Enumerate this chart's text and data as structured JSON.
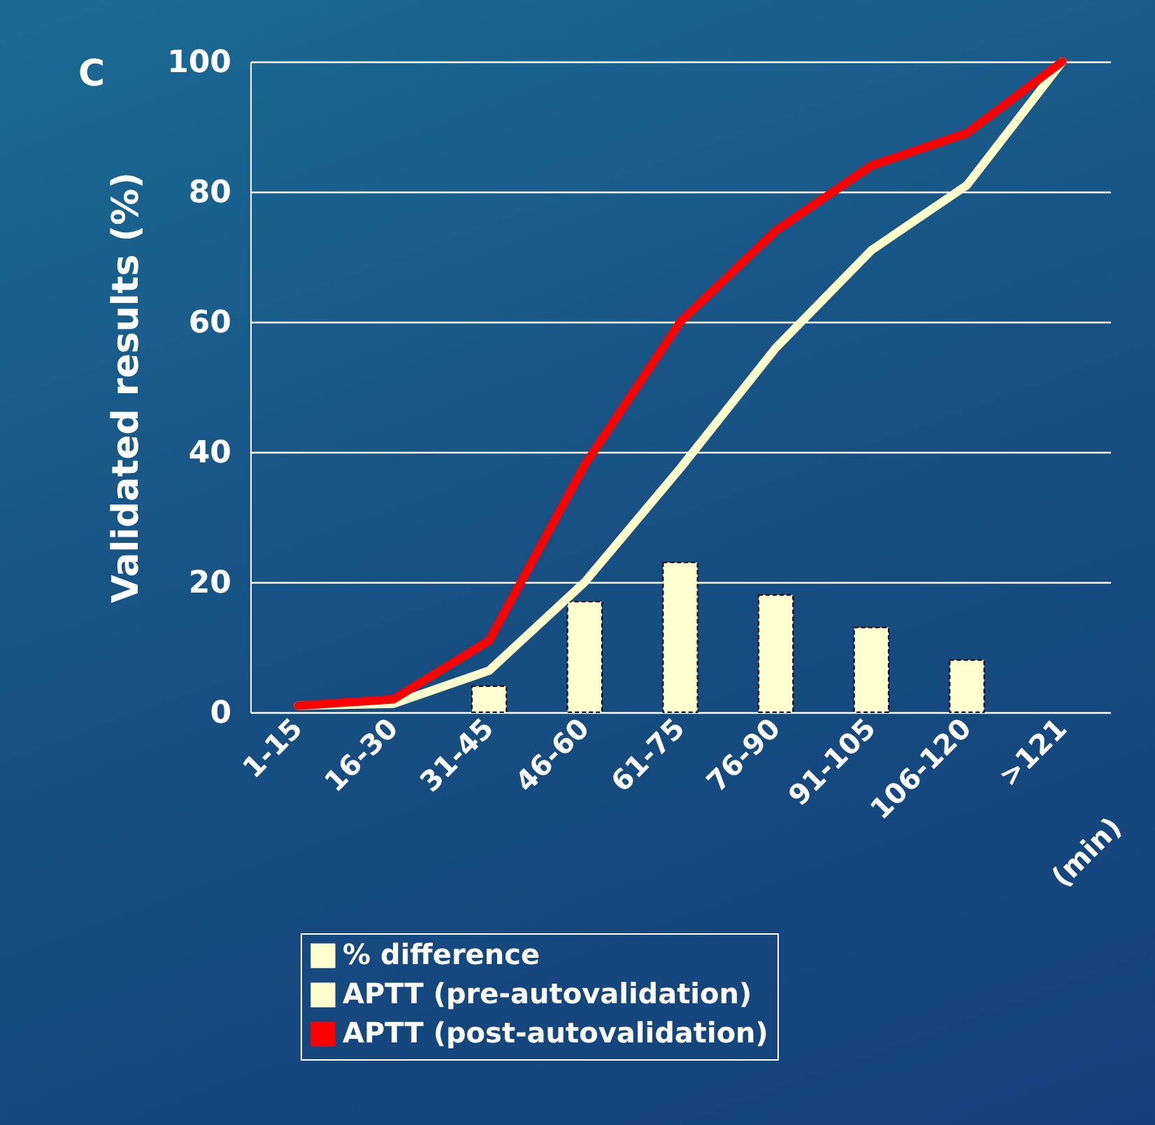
{
  "chart_data": {
    "type": "line",
    "xlabel": "(min)",
    "ylabel": "Validated results (%)",
    "annotations": [
      "C"
    ],
    "categories": [
      "1-15",
      "16-30",
      "31-45",
      "46-60",
      "61-75",
      "76-90",
      "91-105",
      "106-120",
      ">121"
    ],
    "series": [
      {
        "name": "% difference",
        "type": "bar",
        "color": "#ffffd0",
        "values": [
          null,
          null,
          4,
          17,
          23,
          18,
          13,
          8,
          null
        ]
      },
      {
        "name": "APTT (pre-autovalidation)",
        "color": "#ffffcc",
        "values": [
          1,
          1.3,
          6.4,
          20,
          37.5,
          56,
          71,
          81,
          100
        ]
      },
      {
        "name": "APTT (post-autovalidation)",
        "color": "#ff0000",
        "values": [
          1,
          2,
          11,
          38,
          60,
          74,
          84,
          89,
          100
        ]
      }
    ],
    "ylim": [
      0,
      100
    ],
    "yticks": [
      0,
      20,
      40,
      60,
      80,
      100
    ],
    "grid": "y",
    "legend": "bottom",
    "marker": "none"
  }
}
